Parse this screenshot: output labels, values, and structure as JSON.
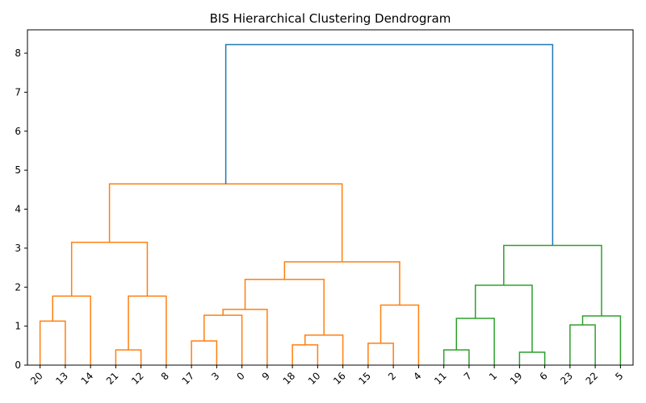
{
  "chart_data": {
    "type": "dendrogram",
    "title": "BIS Hierarchical Clustering Dendrogram",
    "xlabel": "",
    "ylabel": "",
    "ylim": [
      0,
      8.6
    ],
    "yticks": [
      0,
      1,
      2,
      3,
      4,
      5,
      6,
      7,
      8
    ],
    "grid": false,
    "leaves": [
      "20",
      "13",
      "14",
      "21",
      "12",
      "8",
      "17",
      "3",
      "0",
      "9",
      "18",
      "10",
      "16",
      "15",
      "2",
      "4",
      "11",
      "7",
      "1",
      "19",
      "6",
      "23",
      "22",
      "5"
    ],
    "cluster_colors": {
      "above_threshold": "#1f77b4",
      "cluster_1": "#ff7f0e",
      "cluster_2": "#2ca02c"
    },
    "merges": [
      {
        "left": "20",
        "right": "13",
        "height": 1.13,
        "color": "cluster_1"
      },
      {
        "left": "20+13",
        "right": "14",
        "height": 1.77,
        "color": "cluster_1"
      },
      {
        "left": "21",
        "right": "12",
        "height": 0.39,
        "color": "cluster_1"
      },
      {
        "left": "21+12",
        "right": "8",
        "height": 1.77,
        "color": "cluster_1"
      },
      {
        "left": "20+13+14",
        "right": "21+12+8",
        "height": 3.15,
        "color": "cluster_1"
      },
      {
        "left": "17",
        "right": "3",
        "height": 0.62,
        "color": "cluster_1"
      },
      {
        "left": "17+3",
        "right": "0",
        "height": 1.28,
        "color": "cluster_1"
      },
      {
        "left": "17+3+0",
        "right": "9",
        "height": 1.43,
        "color": "cluster_1"
      },
      {
        "left": "18",
        "right": "10",
        "height": 0.52,
        "color": "cluster_1"
      },
      {
        "left": "18+10",
        "right": "16",
        "height": 0.77,
        "color": "cluster_1"
      },
      {
        "left": "17+3+0+9",
        "right": "18+10+16",
        "height": 2.2,
        "color": "cluster_1"
      },
      {
        "left": "15",
        "right": "2",
        "height": 0.56,
        "color": "cluster_1"
      },
      {
        "left": "15+2",
        "right": "4",
        "height": 1.54,
        "color": "cluster_1"
      },
      {
        "left": "17..16",
        "right": "15+2+4",
        "height": 2.65,
        "color": "cluster_1"
      },
      {
        "left": "20..8",
        "right": "17..4",
        "height": 4.65,
        "color": "cluster_1"
      },
      {
        "left": "11",
        "right": "7",
        "height": 0.39,
        "color": "cluster_2"
      },
      {
        "left": "11+7",
        "right": "1",
        "height": 1.2,
        "color": "cluster_2"
      },
      {
        "left": "19",
        "right": "6",
        "height": 0.33,
        "color": "cluster_2"
      },
      {
        "left": "11+7+1",
        "right": "19+6",
        "height": 2.05,
        "color": "cluster_2"
      },
      {
        "left": "23",
        "right": "22",
        "height": 1.03,
        "color": "cluster_2"
      },
      {
        "left": "23+22",
        "right": "5",
        "height": 1.26,
        "color": "cluster_2"
      },
      {
        "left": "11..6",
        "right": "23+22+5",
        "height": 3.07,
        "color": "cluster_2"
      },
      {
        "left": "20..4",
        "right": "11..5",
        "height": 8.22,
        "color": "above_threshold"
      }
    ]
  }
}
